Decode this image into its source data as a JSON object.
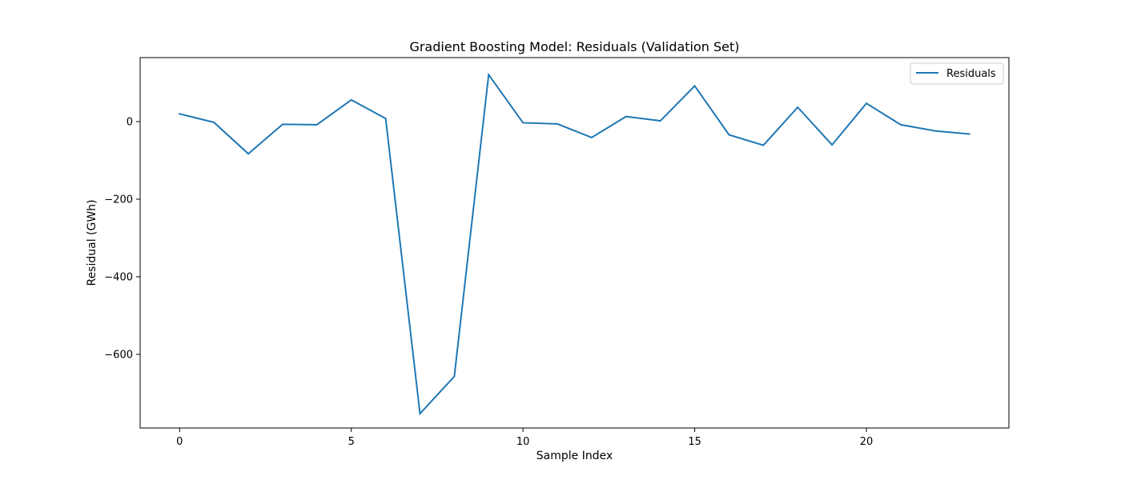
{
  "chart_data": {
    "type": "line",
    "title": "Gradient Boosting Model: Residuals (Validation Set)",
    "xlabel": "Sample Index",
    "ylabel": "Residual (GWh)",
    "xlim": [
      -1.15,
      24.15
    ],
    "ylim": [
      -790,
      165
    ],
    "xticks": [
      0,
      5,
      10,
      15,
      20
    ],
    "yticks": [
      0,
      -200,
      -400,
      -600
    ],
    "xtick_labels": [
      "0",
      "5",
      "10",
      "15",
      "20"
    ],
    "ytick_labels": [
      "0",
      "−200",
      "−400",
      "−600"
    ],
    "grid": false,
    "legend_position": "upper right",
    "series": [
      {
        "name": "Residuals",
        "color": "#1f77b4",
        "x": [
          0,
          1,
          2,
          3,
          4,
          5,
          6,
          7,
          8,
          9,
          10,
          11,
          12,
          13,
          14,
          15,
          16,
          17,
          18,
          19,
          20,
          21,
          22,
          23
        ],
        "y": [
          20,
          -2,
          -83,
          -7,
          -8,
          56,
          8,
          -753,
          -657,
          121,
          -3,
          -6,
          -41,
          13,
          2,
          92,
          -34,
          -61,
          37,
          -60,
          47,
          -8,
          -24,
          -32
        ]
      }
    ]
  }
}
